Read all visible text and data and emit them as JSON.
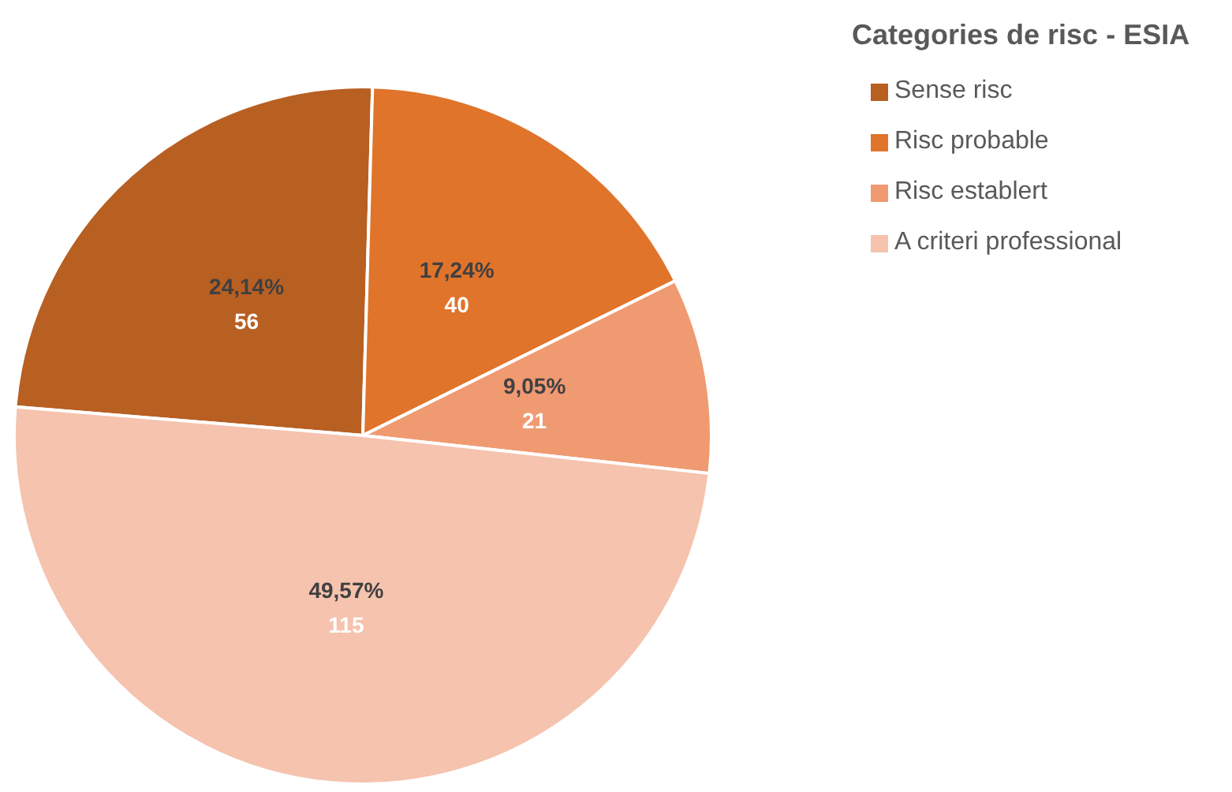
{
  "chart_data": {
    "type": "pie",
    "legend_title": "Categories de risc - ESIA",
    "legend": "top right",
    "categories": [
      "Sense risc",
      "Risc probable",
      "Risc establert",
      "A criteri professional"
    ],
    "values": [
      56,
      40,
      21,
      115
    ],
    "colors": [
      "#b85f22",
      "#e0742b",
      "#f09a72",
      "#f5c3ae"
    ],
    "value_labels": [
      "24,14%\n56",
      "17,24%\n40",
      "9,05%\n21",
      "49,57%\n115"
    ]
  }
}
